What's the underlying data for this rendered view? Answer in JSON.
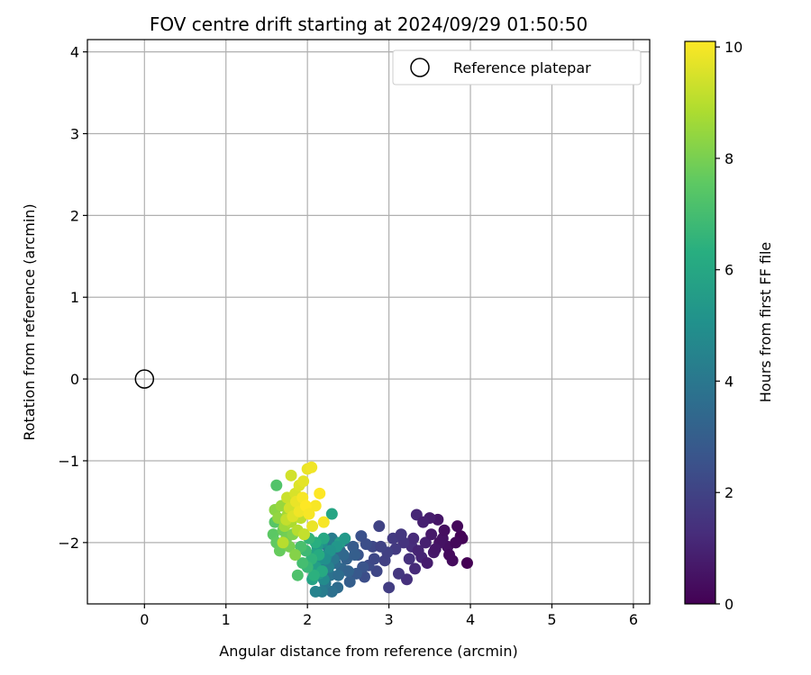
{
  "chart_data": {
    "type": "scatter",
    "title": "FOV centre drift starting at 2024/09/29 01:50:50",
    "xlabel": "Angular distance from reference (arcmin)",
    "ylabel": "Rotation from reference (arcmin)",
    "xlim": [
      -0.7,
      6.2
    ],
    "ylim": [
      -2.75,
      4.15
    ],
    "xticks": [
      "0",
      "1",
      "2",
      "3",
      "4",
      "5",
      "6"
    ],
    "yticks": [
      "−2",
      "−1",
      "0",
      "1",
      "2",
      "3",
      "4"
    ],
    "grid": true,
    "legend": {
      "position": "top-right",
      "entries": [
        "Reference platepar"
      ]
    },
    "reference_point": {
      "x": 0,
      "y": 0
    },
    "colorbar": {
      "label": "Hours from first FF file",
      "min": 0,
      "max": 10.1,
      "ticks": [
        "0",
        "2",
        "4",
        "6",
        "8",
        "10"
      ],
      "colormap": "viridis"
    },
    "points": [
      [
        3.96,
        -2.25,
        0.0
      ],
      [
        3.88,
        -1.92,
        0.1
      ],
      [
        3.84,
        -1.8,
        0.2
      ],
      [
        3.78,
        -2.22,
        0.3
      ],
      [
        3.72,
        -2.05,
        0.4
      ],
      [
        3.66,
        -1.95,
        0.5
      ],
      [
        3.6,
        -1.72,
        0.6
      ],
      [
        3.55,
        -2.12,
        0.7
      ],
      [
        3.5,
        -1.7,
        0.8
      ],
      [
        3.45,
        -2.0,
        0.9
      ],
      [
        3.4,
        -2.18,
        1.0
      ],
      [
        3.34,
        -1.66,
        1.1
      ],
      [
        3.32,
        -2.32,
        1.2
      ],
      [
        3.28,
        -2.05,
        1.3
      ],
      [
        3.22,
        -2.45,
        1.4
      ],
      [
        3.9,
        -1.95,
        0.1
      ],
      [
        3.82,
        -2.0,
        0.2
      ],
      [
        3.74,
        -2.15,
        0.3
      ],
      [
        3.68,
        -1.85,
        0.4
      ],
      [
        3.62,
        -2.0,
        0.5
      ],
      [
        3.57,
        -2.08,
        0.6
      ],
      [
        3.52,
        -1.9,
        0.7
      ],
      [
        3.47,
        -2.25,
        0.8
      ],
      [
        3.42,
        -1.75,
        0.9
      ],
      [
        3.36,
        -2.1,
        1.0
      ],
      [
        3.3,
        -1.95,
        1.2
      ],
      [
        3.25,
        -2.2,
        1.4
      ],
      [
        3.18,
        -2.0,
        1.5
      ],
      [
        3.12,
        -2.38,
        1.6
      ],
      [
        3.05,
        -1.95,
        1.7
      ],
      [
        3.15,
        -1.9,
        1.6
      ],
      [
        3.0,
        -2.55,
        1.8
      ],
      [
        2.95,
        -2.22,
        1.9
      ],
      [
        2.88,
        -1.8,
        2.0
      ],
      [
        2.85,
        -2.35,
        2.1
      ],
      [
        2.8,
        -2.05,
        2.2
      ],
      [
        2.75,
        -2.28,
        2.3
      ],
      [
        2.7,
        -2.42,
        2.4
      ],
      [
        2.66,
        -1.92,
        2.5
      ],
      [
        2.62,
        -2.15,
        2.6
      ],
      [
        3.08,
        -2.08,
        1.7
      ],
      [
        2.98,
        -2.12,
        1.9
      ],
      [
        2.9,
        -2.05,
        2.0
      ],
      [
        2.82,
        -2.2,
        2.2
      ],
      [
        2.72,
        -2.02,
        2.4
      ],
      [
        2.68,
        -2.3,
        2.6
      ],
      [
        2.6,
        -2.38,
        2.8
      ],
      [
        2.56,
        -2.05,
        2.9
      ],
      [
        2.52,
        -2.48,
        3.0
      ],
      [
        2.48,
        -2.2,
        3.1
      ],
      [
        2.45,
        -1.98,
        3.2
      ],
      [
        2.42,
        -2.32,
        3.3
      ],
      [
        2.4,
        -2.1,
        3.4
      ],
      [
        2.37,
        -2.55,
        3.5
      ],
      [
        2.34,
        -2.25,
        3.6
      ],
      [
        2.3,
        -2.6,
        3.7
      ],
      [
        2.28,
        -2.4,
        3.8
      ],
      [
        2.25,
        -2.05,
        3.9
      ],
      [
        2.22,
        -2.5,
        4.0
      ],
      [
        2.2,
        -2.28,
        4.1
      ],
      [
        2.18,
        -2.6,
        4.2
      ],
      [
        2.15,
        -2.35,
        4.3
      ],
      [
        2.12,
        -2.12,
        4.4
      ],
      [
        2.1,
        -2.6,
        4.5
      ],
      [
        2.58,
        -2.15,
        3.0
      ],
      [
        2.5,
        -2.35,
        3.2
      ],
      [
        2.44,
        -2.15,
        3.4
      ],
      [
        2.38,
        -2.4,
        3.6
      ],
      [
        2.35,
        -2.0,
        3.8
      ],
      [
        2.32,
        -2.2,
        4.0
      ],
      [
        2.3,
        -1.95,
        4.2
      ],
      [
        2.26,
        -2.3,
        4.4
      ],
      [
        2.24,
        -2.15,
        4.6
      ],
      [
        2.2,
        -2.45,
        4.8
      ],
      [
        2.18,
        -2.0,
        5.0
      ],
      [
        2.16,
        -2.2,
        5.2
      ],
      [
        2.14,
        -2.38,
        5.4
      ],
      [
        2.12,
        -2.05,
        5.5
      ],
      [
        2.1,
        -2.3,
        5.6
      ],
      [
        2.08,
        -2.15,
        5.7
      ],
      [
        2.06,
        -2.45,
        5.8
      ],
      [
        2.3,
        -1.65,
        5.9
      ],
      [
        2.4,
        -2.0,
        5.6
      ],
      [
        2.46,
        -1.95,
        5.4
      ],
      [
        2.36,
        -2.05,
        5.3
      ],
      [
        2.28,
        -2.1,
        5.2
      ],
      [
        2.22,
        -2.2,
        5.0
      ],
      [
        2.2,
        -1.95,
        6.0
      ],
      [
        2.18,
        -2.35,
        6.1
      ],
      [
        2.14,
        -2.15,
        6.2
      ],
      [
        2.1,
        -2.0,
        6.3
      ],
      [
        2.08,
        -2.4,
        6.4
      ],
      [
        2.05,
        -2.2,
        6.5
      ],
      [
        2.02,
        -1.95,
        6.6
      ],
      [
        2.0,
        -2.3,
        6.7
      ],
      [
        1.98,
        -2.1,
        6.8
      ],
      [
        1.96,
        -1.9,
        6.9
      ],
      [
        1.94,
        -2.25,
        7.0
      ],
      [
        1.92,
        -2.05,
        7.1
      ],
      [
        1.88,
        -2.4,
        7.2
      ],
      [
        1.62,
        -1.3,
        7.3
      ],
      [
        1.6,
        -1.75,
        7.4
      ],
      [
        1.58,
        -1.9,
        7.5
      ],
      [
        1.62,
        -2.0,
        7.6
      ],
      [
        1.66,
        -2.1,
        7.7
      ],
      [
        1.7,
        -1.85,
        7.8
      ],
      [
        1.74,
        -1.95,
        7.9
      ],
      [
        1.78,
        -2.05,
        8.0
      ],
      [
        1.82,
        -1.9,
        8.1
      ],
      [
        1.85,
        -2.15,
        8.2
      ],
      [
        1.6,
        -1.6,
        8.3
      ],
      [
        1.64,
        -1.7,
        8.4
      ],
      [
        1.68,
        -1.55,
        8.5
      ],
      [
        1.72,
        -1.8,
        8.6
      ],
      [
        1.76,
        -1.65,
        8.7
      ],
      [
        1.8,
        -1.75,
        8.8
      ],
      [
        1.84,
        -1.6,
        8.9
      ],
      [
        1.88,
        -1.85,
        9.0
      ],
      [
        1.92,
        -1.7,
        9.1
      ],
      [
        1.96,
        -1.9,
        9.2
      ],
      [
        1.75,
        -1.45,
        9.3
      ],
      [
        1.8,
        -1.18,
        9.4
      ],
      [
        1.85,
        -1.4,
        9.5
      ],
      [
        1.9,
        -1.3,
        9.6
      ],
      [
        1.95,
        -1.25,
        9.7
      ],
      [
        2.0,
        -1.1,
        9.8
      ],
      [
        2.05,
        -1.08,
        9.9
      ],
      [
        2.1,
        -1.55,
        10.0
      ],
      [
        2.15,
        -1.4,
        10.1
      ],
      [
        2.2,
        -1.75,
        10.0
      ],
      [
        1.7,
        -2.0,
        9.0
      ],
      [
        1.74,
        -1.72,
        9.2
      ],
      [
        1.78,
        -1.58,
        9.4
      ],
      [
        1.82,
        -1.68,
        9.6
      ],
      [
        1.86,
        -1.5,
        9.8
      ],
      [
        1.9,
        -1.62,
        9.9
      ],
      [
        1.94,
        -1.45,
        10.0
      ],
      [
        1.98,
        -1.55,
        10.1
      ],
      [
        2.02,
        -1.65,
        10.0
      ],
      [
        2.06,
        -1.8,
        9.8
      ]
    ]
  }
}
